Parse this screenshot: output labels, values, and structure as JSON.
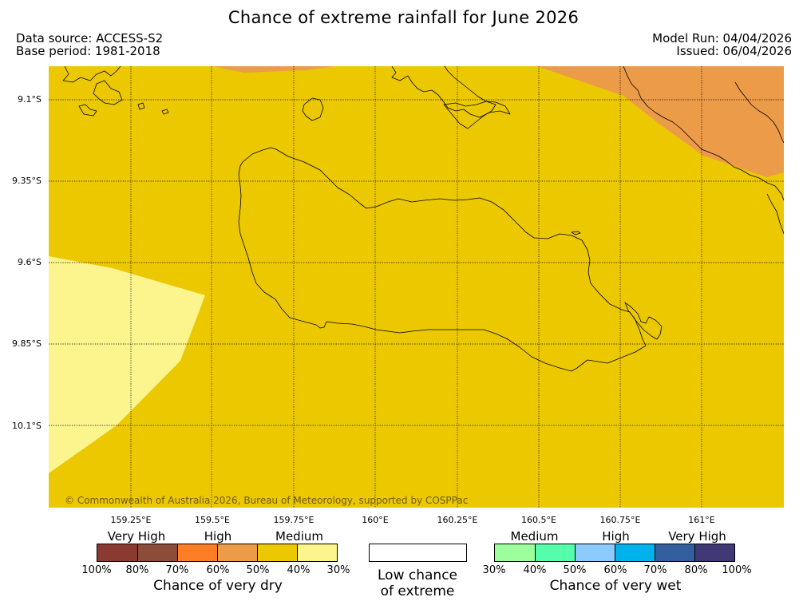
{
  "title": "Chance of extreme rainfall for June 2026",
  "data_source": "Data source: ACCESS-S2",
  "base_period": "Base period: 1981-2018",
  "model_run": "Model Run: 04/04/2026",
  "issued": "Issued: 06/04/2026",
  "copyright": "© Commonwealth of Australia 2026, Bureau of Meteorology, supported by COSPPac",
  "latitude_labels": [
    "9.1°S",
    "9.35°S",
    "9.6°S",
    "9.85°S",
    "10.1°S"
  ],
  "longitude_labels": [
    "159.25°E",
    "159.5°E",
    "159.75°E",
    "160°E",
    "160.25°E",
    "160.5°E",
    "160.75°E",
    "161°E"
  ],
  "map_colors": {
    "land_outline": "#000000",
    "background_fill": "#ecc800",
    "west_fill": "#fcf48c",
    "northeast_fill": "#ec9b48",
    "grid_line": "#000000"
  },
  "map_regions": [
    {
      "name": "Medium chance of very dry",
      "extent": "most of the map",
      "color": "#ecc800"
    },
    {
      "name": "30% (very dry scale)",
      "extent": "western edge",
      "color": "#fcf48c"
    },
    {
      "name": "High chance of very dry",
      "extent": "north-east corner",
      "color": "#ec9b48"
    }
  ],
  "dry_scale": {
    "categories": [
      "Very High",
      "High",
      "Medium"
    ],
    "colors": [
      "#8b3a31",
      "#8b4c38",
      "#fe7e26",
      "#ec9b48",
      "#ecc800",
      "#fcf48c"
    ],
    "ticks": [
      "100%",
      "80%",
      "70%",
      "60%",
      "50%",
      "40%",
      "30%"
    ],
    "title": "Chance of very dry"
  },
  "low_chance": {
    "line1": "Low chance",
    "line2": "of extreme",
    "color": "#ffffff"
  },
  "wet_scale": {
    "categories": [
      "Medium",
      "High",
      "Very High"
    ],
    "colors": [
      "#9dfe9c",
      "#55feab",
      "#8ccbfe",
      "#00b2ec",
      "#345f9e",
      "#403975"
    ],
    "ticks": [
      "30%",
      "40%",
      "50%",
      "60%",
      "70%",
      "80%",
      "100%"
    ],
    "title": "Chance of very wet"
  }
}
